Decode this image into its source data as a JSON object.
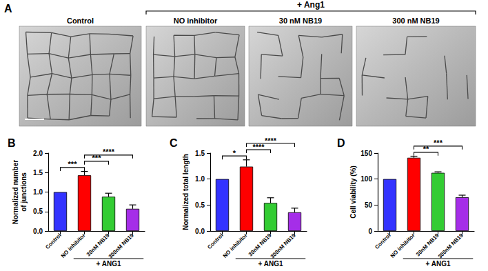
{
  "panel_a": {
    "label": "A",
    "group_label": "+ Ang1",
    "images": [
      "Control",
      "NO inhibitor",
      "30 nM NB19",
      "300 nM NB19"
    ]
  },
  "chart_data": [
    {
      "title": "B",
      "type": "bar",
      "ylabel": "Normalized number of junctions",
      "categories": [
        "Control",
        "NO inhibitor",
        "30nM NB19",
        "300nM NB19"
      ],
      "values": [
        1.0,
        1.43,
        0.88,
        0.57
      ],
      "errors": [
        0,
        0.1,
        0.09,
        0.1
      ],
      "colors": [
        "#3333ff",
        "#ff0000",
        "#33cc33",
        "#a52ee8"
      ],
      "ylim": [
        0,
        2
      ],
      "yticks": [
        {
          "value": 0,
          "label": "0.0"
        },
        0.5,
        {
          "value": 1,
          "label": "1.0"
        },
        1.5,
        {
          "value": 2,
          "label": "2.0"
        }
      ],
      "grid": false,
      "group": {
        "label": "+ ANG1",
        "from": "NO inhibitor",
        "to": "300nM NB19"
      },
      "annotations": [
        {
          "text": "***",
          "from": "Control",
          "to": "NO inhibitor"
        },
        {
          "text": "***",
          "from": "NO inhibitor",
          "to": "30nM NB19"
        },
        {
          "text": "****",
          "from": "NO inhibitor",
          "to": "300nM NB19"
        }
      ]
    },
    {
      "title": "C",
      "type": "bar",
      "ylabel": "Normalized total length",
      "categories": [
        "Control",
        "NO inhibitor",
        "30nM NB19",
        "300nM NB19"
      ],
      "values": [
        1.0,
        1.24,
        0.54,
        0.36
      ],
      "errors": [
        0,
        0.13,
        0.1,
        0.08
      ],
      "colors": [
        "#3333ff",
        "#ff0000",
        "#33cc33",
        "#a52ee8"
      ],
      "ylim": [
        0,
        1.5
      ],
      "yticks": [
        {
          "value": 0,
          "label": "0.0"
        },
        0.5,
        {
          "value": 1,
          "label": "1.0"
        },
        1.5
      ],
      "grid": false,
      "group": {
        "label": "+ ANG1",
        "from": "NO inhibitor",
        "to": "300nM NB19"
      },
      "annotations": [
        {
          "text": "*",
          "from": "Control",
          "to": "NO inhibitor"
        },
        {
          "text": "****",
          "from": "NO inhibitor",
          "to": "30nM NB19"
        },
        {
          "text": "****",
          "from": "NO inhibitor",
          "to": "300nM NB19"
        }
      ]
    },
    {
      "title": "D",
      "type": "bar",
      "ylabel": "Cell viability (%)",
      "categories": [
        "Control",
        "NO inhibitor",
        "30nM NB19",
        "300nM NB19"
      ],
      "values": [
        100,
        141,
        112,
        65
      ],
      "errors": [
        0,
        3,
        2,
        4
      ],
      "colors": [
        "#3333ff",
        "#ff0000",
        "#33cc33",
        "#a52ee8"
      ],
      "ylim": [
        0,
        150
      ],
      "yticks": [
        0,
        50,
        100,
        150
      ],
      "grid": false,
      "group": {
        "label": "+ ANG1",
        "from": "NO inhibitor",
        "to": "300nM NB19"
      },
      "annotations": [
        {
          "text": "**",
          "from": "NO inhibitor",
          "to": "30nM NB19"
        },
        {
          "text": "***",
          "from": "NO inhibitor",
          "to": "300nM NB19"
        }
      ]
    }
  ]
}
